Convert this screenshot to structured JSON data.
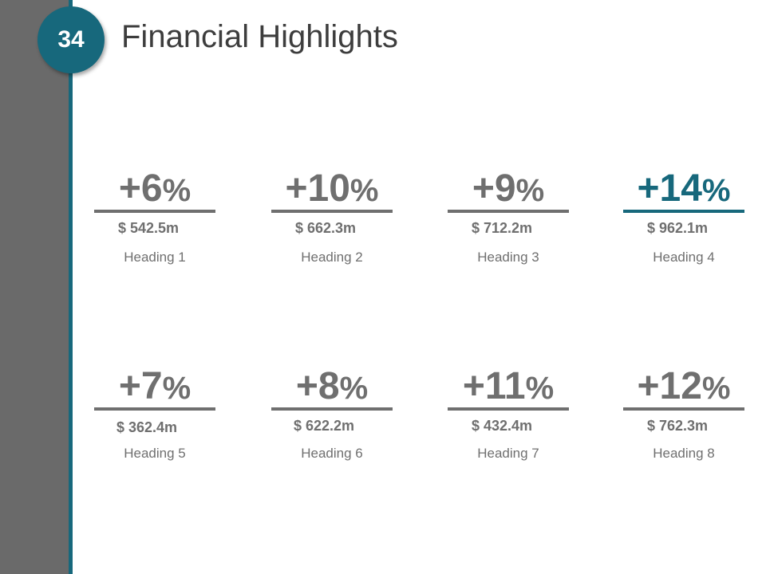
{
  "slide": {
    "number": "34",
    "title": "Financial Highlights",
    "accent_color": "#17687c",
    "sidebar_color": "#6a6a6a",
    "text_color": "#6f6f6f"
  },
  "metrics": [
    {
      "percent": "+6",
      "percent_sign": "%",
      "amount": "$ 542.5m",
      "heading": "Heading 1"
    },
    {
      "percent": "+10",
      "percent_sign": "%",
      "amount": "$ 662.3m",
      "heading": "Heading 2"
    },
    {
      "percent": "+9",
      "percent_sign": "%",
      "amount": "$ 712.2m",
      "heading": "Heading 3"
    },
    {
      "percent": "+14",
      "percent_sign": "%",
      "amount": "$ 962.1m",
      "heading": "Heading 4",
      "highlighted": true
    },
    {
      "percent": "+7",
      "percent_sign": "%",
      "amount": "$ 362.4m",
      "heading": "Heading 5"
    },
    {
      "percent": "+8",
      "percent_sign": "%",
      "amount": "$ 622.2m",
      "heading": "Heading 6"
    },
    {
      "percent": "+11",
      "percent_sign": "%",
      "amount": "$ 432.4m",
      "heading": "Heading 7"
    },
    {
      "percent": "+12",
      "percent_sign": "%",
      "amount": "$ 762.3m",
      "heading": "Heading 8"
    }
  ]
}
